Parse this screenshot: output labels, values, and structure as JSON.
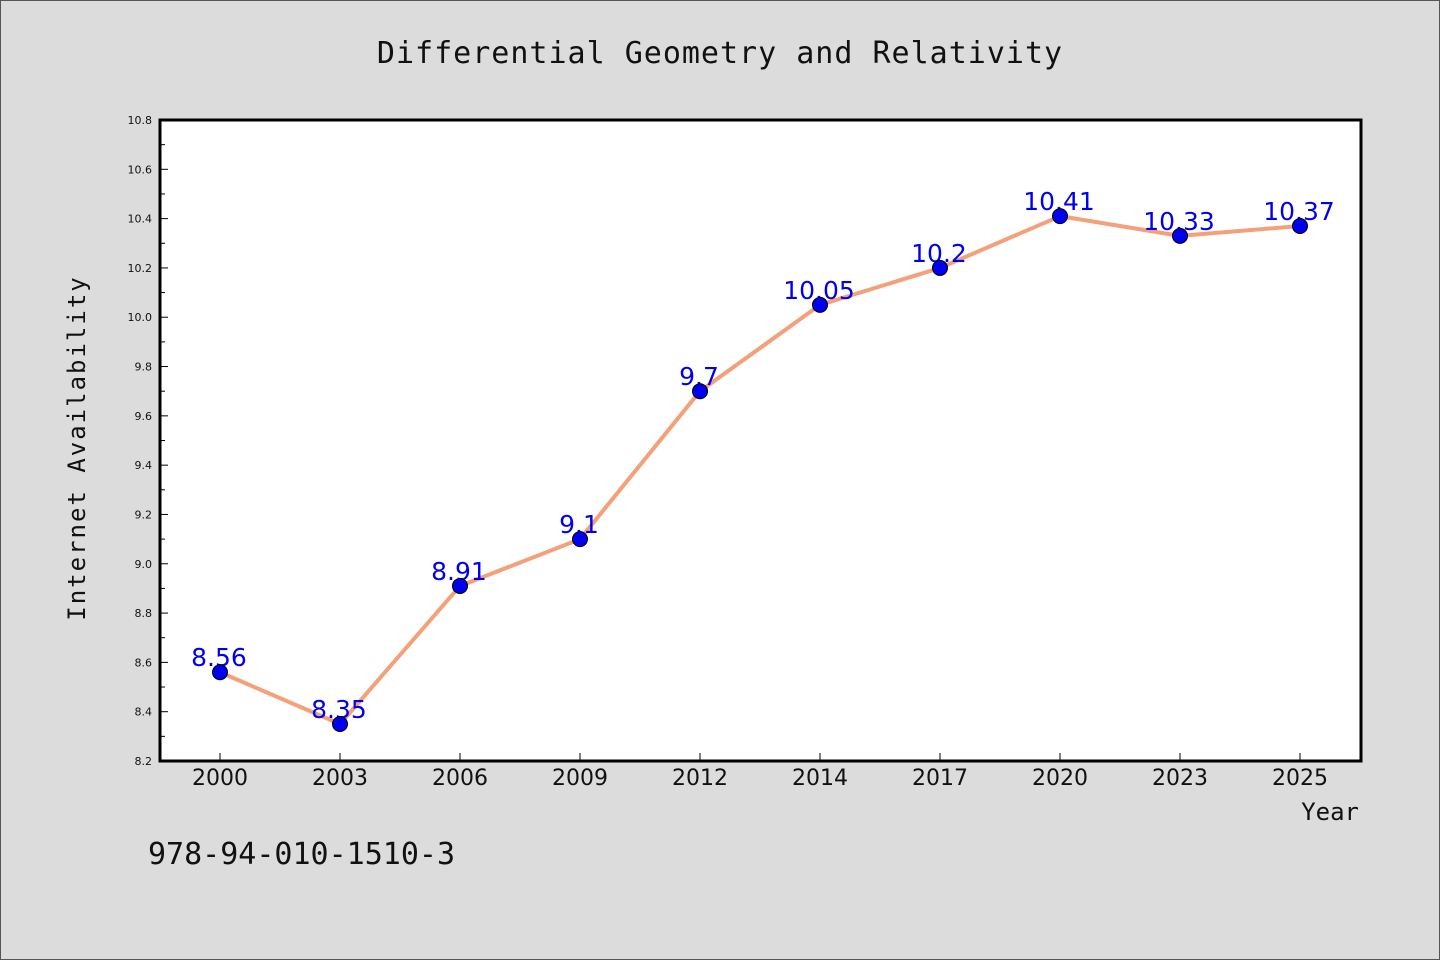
{
  "chart_data": {
    "type": "line",
    "title": "Differential Geometry and Relativity",
    "xlabel": "Year",
    "ylabel": "Internet Availability",
    "categories": [
      "2000",
      "2003",
      "2006",
      "2009",
      "2012",
      "2014",
      "2017",
      "2020",
      "2023",
      "2025"
    ],
    "series": [
      {
        "values": [
          8.56,
          8.35,
          8.91,
          9.1,
          9.7,
          10.05,
          10.2,
          10.41,
          10.33,
          10.37
        ],
        "labels": [
          "8.56",
          "8.35",
          "8.91",
          "9.1",
          "9.7",
          "10.05",
          "10.2",
          "10.41",
          "10.33",
          "10.37"
        ]
      }
    ],
    "ylim": [
      8.2,
      10.8
    ],
    "yticks": [
      "8.2",
      "8.4",
      "8.6",
      "8.8",
      "9.0",
      "9.2",
      "9.4",
      "9.6",
      "9.8",
      "10.0",
      "10.2",
      "10.4",
      "10.6",
      "10.8"
    ],
    "grid": false,
    "line_color": "#f4a07a",
    "marker_color": "#0000ee",
    "label_color": "#0000ee"
  },
  "annotation": "978-94-010-1510-3",
  "colors": {
    "background": "#dcdcdc",
    "plot_bg": "#ffffff"
  }
}
